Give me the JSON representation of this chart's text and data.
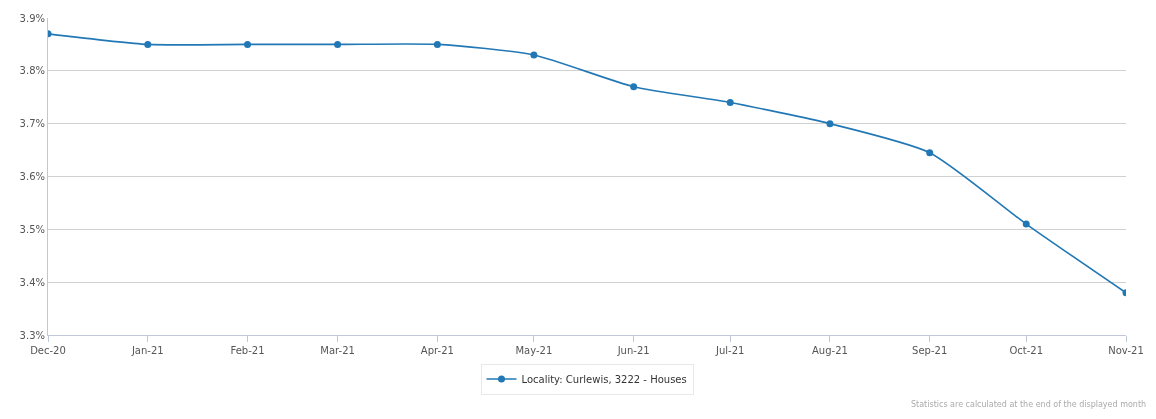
{
  "chart_data": {
    "type": "line",
    "x": [
      "2020-12-01",
      "2021-01-01",
      "2021-02-01",
      "2021-03-01",
      "2021-04-01",
      "2021-05-01",
      "2021-06-01",
      "2021-07-01",
      "2021-08-01",
      "2021-09-01",
      "2021-10-01",
      "2021-11-01"
    ],
    "series": [
      {
        "name": "Locality: Curlewis, 3222 - Houses",
        "color": "#2278b5",
        "values": [
          3.87,
          3.85,
          3.85,
          3.85,
          3.85,
          3.83,
          3.77,
          3.74,
          3.7,
          3.645,
          3.51,
          3.38
        ]
      }
    ],
    "xlim": [
      "2020-12-01",
      "2021-11-01"
    ],
    "xticks": [
      {
        "value": "2020-12-01",
        "label": "Dec-20"
      },
      {
        "value": "2021-01-01",
        "label": "Jan-21"
      },
      {
        "value": "2021-02-01",
        "label": "Feb-21"
      },
      {
        "value": "2021-03-01",
        "label": "Mar-21"
      },
      {
        "value": "2021-04-01",
        "label": "Apr-21"
      },
      {
        "value": "2021-05-01",
        "label": "May-21"
      },
      {
        "value": "2021-06-01",
        "label": "Jun-21"
      },
      {
        "value": "2021-07-01",
        "label": "Jul-21"
      },
      {
        "value": "2021-08-01",
        "label": "Aug-21"
      },
      {
        "value": "2021-09-01",
        "label": "Sep-21"
      },
      {
        "value": "2021-10-01",
        "label": "Oct-21"
      },
      {
        "value": "2021-11-01",
        "label": "Nov-21"
      }
    ],
    "ylim": [
      3.3,
      3.9
    ],
    "yticks": [
      {
        "value": 3.3,
        "label": "3.3%"
      },
      {
        "value": 3.4,
        "label": "3.4%"
      },
      {
        "value": 3.5,
        "label": "3.5%"
      },
      {
        "value": 3.6,
        "label": "3.6%"
      },
      {
        "value": 3.7,
        "label": "3.7%"
      },
      {
        "value": 3.8,
        "label": "3.8%"
      },
      {
        "value": 3.9,
        "label": "3.9%"
      }
    ],
    "grid": "y",
    "legend": "bottom",
    "marker": "circle",
    "line_style": "solid",
    "annotations": [
      "Statistics are calculated at the end of the displayed month"
    ]
  }
}
